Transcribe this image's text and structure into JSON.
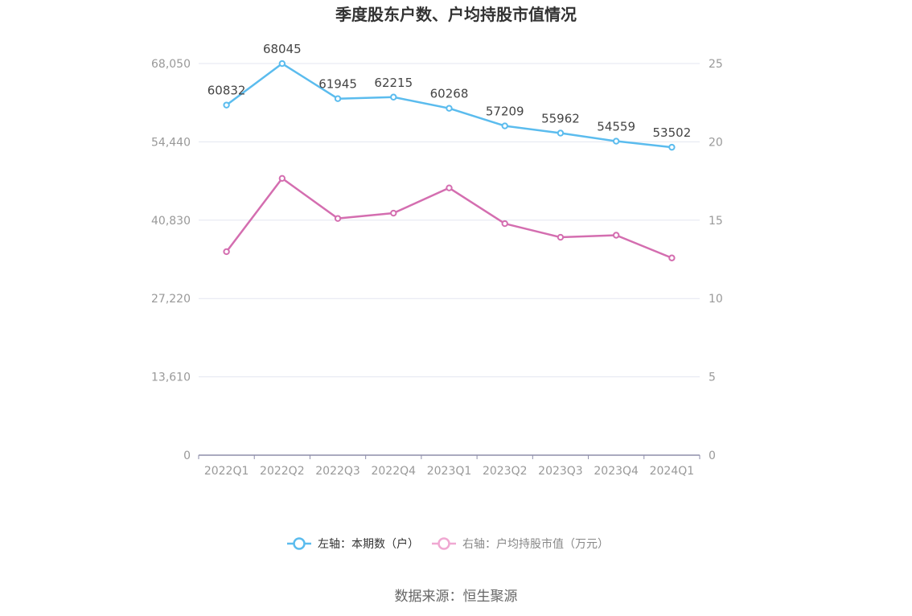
{
  "chart_data": {
    "type": "line",
    "title": "季度股东户数、户均持股市值情况",
    "categories": [
      "2022Q1",
      "2022Q2",
      "2022Q3",
      "2022Q4",
      "2023Q1",
      "2023Q2",
      "2023Q3",
      "2023Q4",
      "2024Q1"
    ],
    "left_axis": {
      "ticks": [
        "0",
        "13,610",
        "27,220",
        "40,830",
        "54,440",
        "68,050"
      ],
      "ylim": [
        0,
        68050
      ]
    },
    "right_axis": {
      "ticks": [
        "0",
        "5",
        "10",
        "15",
        "20",
        "25"
      ],
      "ylim": [
        0,
        25
      ]
    },
    "series": [
      {
        "name": "左轴：本期数（户）",
        "axis": "left",
        "color": "#5bbcee",
        "values": [
          60832,
          68045,
          61945,
          62215,
          60268,
          57209,
          55962,
          54559,
          53502
        ],
        "show_labels": true
      },
      {
        "name": "右轴：户均持股市值（万元）",
        "axis": "right",
        "color": "#d46eb0",
        "legend_color": "#f0a8d2",
        "values": [
          12.99,
          17.67,
          15.11,
          15.45,
          17.06,
          14.78,
          13.91,
          14.04,
          12.59
        ],
        "show_labels": false
      }
    ],
    "grid": true,
    "legend_position": "bottom"
  },
  "source": "数据来源：恒生聚源"
}
